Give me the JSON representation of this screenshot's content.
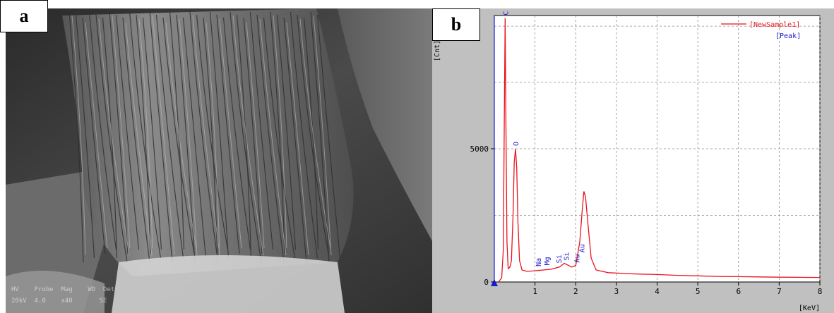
{
  "panels": {
    "a": {
      "label": "a"
    },
    "b": {
      "label": "b"
    }
  },
  "sem_databar": {
    "row1": "HV    Probe  Mag    WD  Det",
    "row2": "20kV  4.0    x40       SE"
  },
  "colors": {
    "spectrum": "#e8141e",
    "element_labels": "#1a1ad0",
    "plot_bg": "#ffffff",
    "frame_bg": "#c0c0c0"
  },
  "chart_data": {
    "type": "line",
    "title": "",
    "xlabel": "[KeV]",
    "ylabel": "[Cnt]",
    "xlim": [
      0,
      8
    ],
    "ylim": [
      0,
      10000
    ],
    "x_ticks": [
      1,
      2,
      3,
      4,
      5,
      6,
      7,
      8
    ],
    "y_ticks": [
      0,
      5000
    ],
    "grid": true,
    "legend": {
      "placement": "top-right",
      "entries": [
        "[NewSample1]",
        "[Peak]"
      ]
    },
    "series": [
      {
        "name": "[NewSample1]",
        "points": [
          [
            0.1,
            0
          ],
          [
            0.18,
            150
          ],
          [
            0.22,
            1200
          ],
          [
            0.245,
            6000
          ],
          [
            0.265,
            9900
          ],
          [
            0.285,
            6000
          ],
          [
            0.31,
            1500
          ],
          [
            0.34,
            500
          ],
          [
            0.38,
            550
          ],
          [
            0.42,
            800
          ],
          [
            0.46,
            2500
          ],
          [
            0.49,
            4500
          ],
          [
            0.52,
            5000
          ],
          [
            0.55,
            4300
          ],
          [
            0.58,
            2300
          ],
          [
            0.62,
            800
          ],
          [
            0.68,
            450
          ],
          [
            0.8,
            400
          ],
          [
            1.0,
            420
          ],
          [
            1.2,
            450
          ],
          [
            1.4,
            480
          ],
          [
            1.6,
            560
          ],
          [
            1.72,
            700
          ],
          [
            1.8,
            640
          ],
          [
            1.9,
            560
          ],
          [
            2.0,
            620
          ],
          [
            2.1,
            1500
          ],
          [
            2.16,
            2700
          ],
          [
            2.2,
            3400
          ],
          [
            2.24,
            3200
          ],
          [
            2.3,
            2200
          ],
          [
            2.38,
            900
          ],
          [
            2.5,
            450
          ],
          [
            2.8,
            350
          ],
          [
            3.5,
            300
          ],
          [
            4.0,
            280
          ],
          [
            4.5,
            250
          ],
          [
            5.0,
            230
          ],
          [
            5.5,
            210
          ],
          [
            6.0,
            200
          ],
          [
            6.5,
            190
          ],
          [
            7.0,
            180
          ],
          [
            7.5,
            175
          ],
          [
            8.0,
            170
          ]
        ]
      }
    ],
    "peak_labels": [
      {
        "element": "C",
        "x": 0.27,
        "y": 9900
      },
      {
        "element": "O",
        "x": 0.52,
        "y": 5000
      },
      {
        "element": "Na",
        "x": 1.08,
        "y": 480
      },
      {
        "element": "Mg",
        "x": 1.28,
        "y": 520
      },
      {
        "element": "Si",
        "x": 1.76,
        "y": 700
      },
      {
        "element": "Si",
        "x": 1.58,
        "y": 600
      },
      {
        "element": "Au",
        "x": 2.02,
        "y": 620
      },
      {
        "element": "Au",
        "x": 2.14,
        "y": 1000
      }
    ]
  }
}
